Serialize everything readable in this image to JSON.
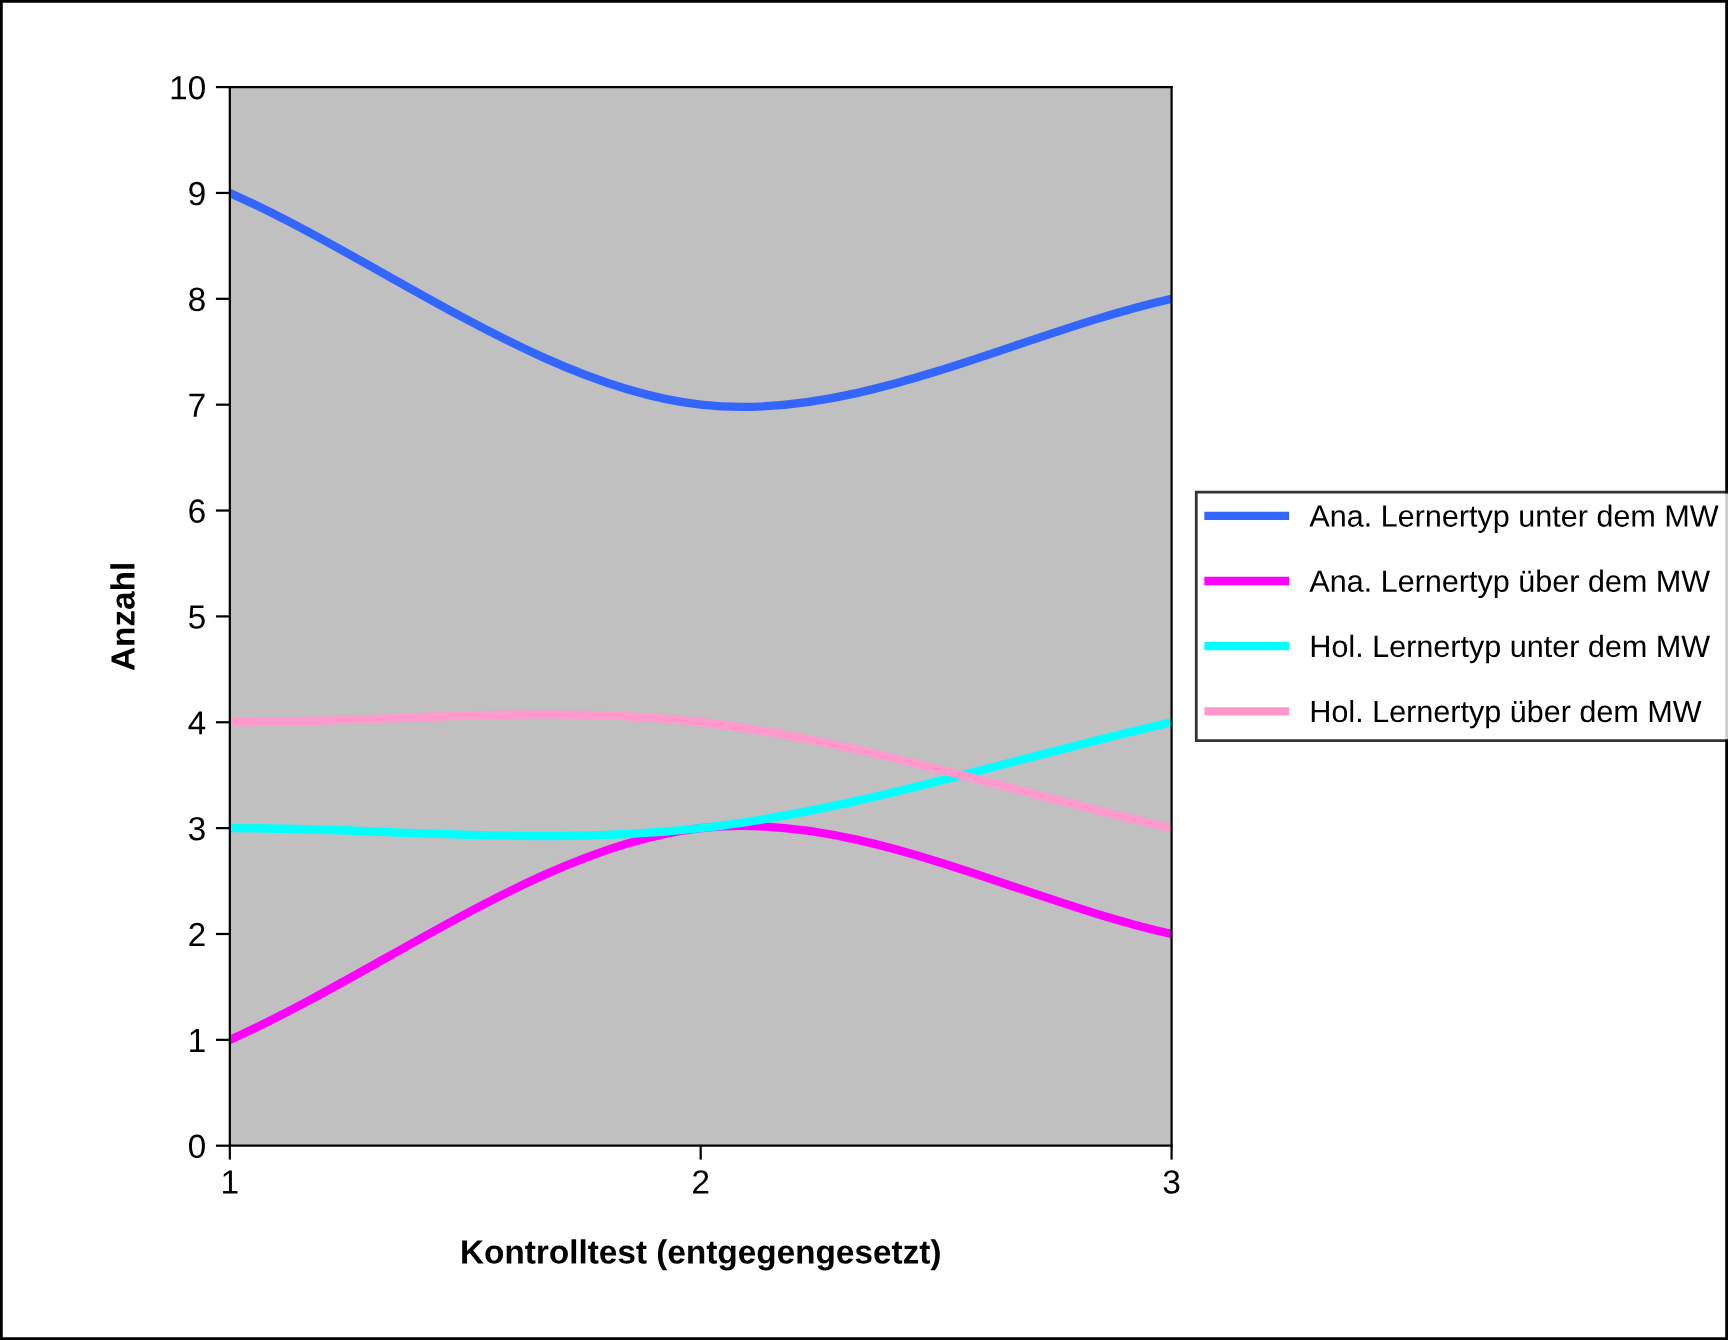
{
  "chart_data": {
    "type": "line",
    "xlabel": "Kontrolltest (entgegengesetzt)",
    "ylabel": "Anzahl",
    "x": [
      1,
      2,
      3
    ],
    "xlim": [
      1,
      3
    ],
    "xticks": [
      1,
      2,
      3
    ],
    "ylim": [
      0,
      10
    ],
    "yticks": [
      0,
      1,
      2,
      3,
      4,
      5,
      6,
      7,
      8,
      9,
      10
    ],
    "grid": false,
    "legend": "right",
    "marker": "none",
    "line_style": "solid",
    "series": [
      {
        "name": "Ana. Lernertyp unter dem MW",
        "color": "#3366ff",
        "values": [
          9,
          7,
          8
        ]
      },
      {
        "name": "Ana. Lernertyp über dem MW",
        "color": "#ff00ff",
        "values": [
          1,
          3,
          2
        ]
      },
      {
        "name": "Hol. Lernertyp unter dem MW",
        "color": "#00ffff",
        "values": [
          3,
          3,
          4
        ]
      },
      {
        "name": "Hol. Lernertyp über dem MW",
        "color": "#ff99cc",
        "values": [
          4,
          4,
          3
        ]
      }
    ]
  }
}
